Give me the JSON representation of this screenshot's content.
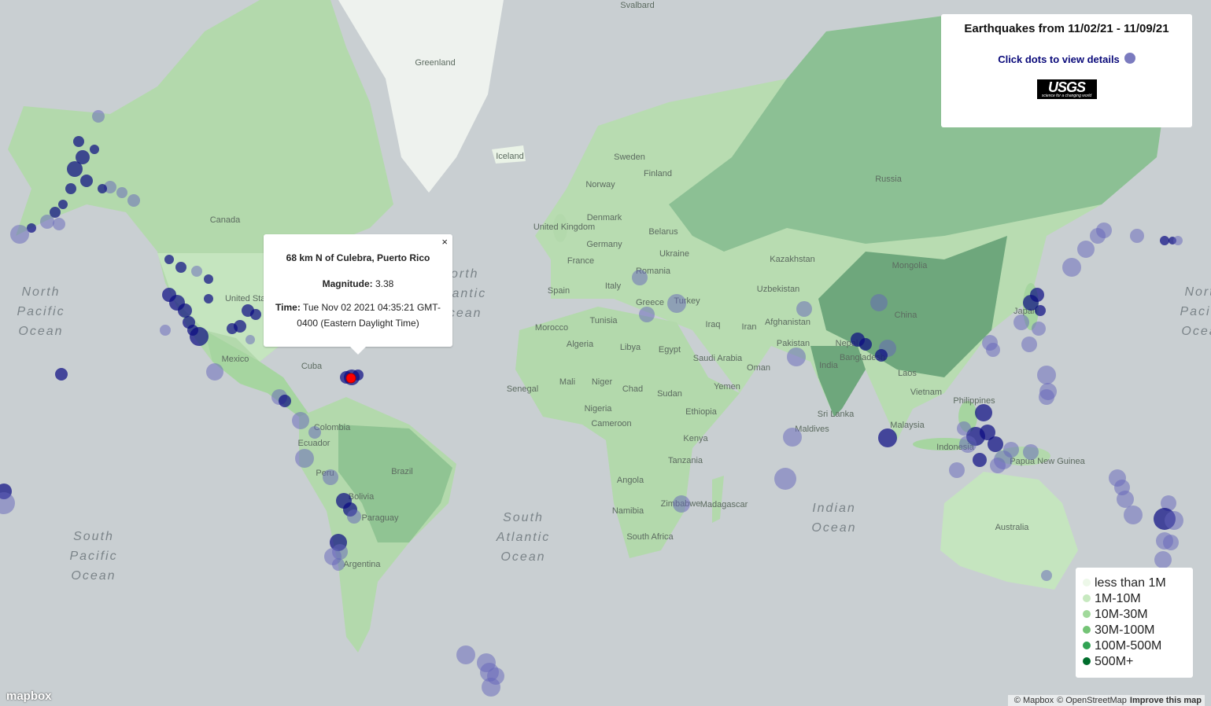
{
  "info": {
    "title": "Earthquakes from 11/02/21 - 11/09/21",
    "hint": "Click dots to view details",
    "logo": {
      "name": "USGS",
      "tagline": "science for a changing world"
    }
  },
  "popup": {
    "close": "×",
    "place": "68 km N of Culebra, Puerto Rico",
    "magnitude_label": "Magnitude:",
    "magnitude": 3.38,
    "time_label": "Time:",
    "time": "Tue Nov 02 2021 04:35:21 GMT-0400 (Eastern Daylight Time)"
  },
  "legend": [
    {
      "label": "less than 1M",
      "color": "#edf8e9"
    },
    {
      "label": "1M-10M",
      "color": "#c7e9c0"
    },
    {
      "label": "10M-30M",
      "color": "#a1d99b"
    },
    {
      "label": "30M-100M",
      "color": "#74c476"
    },
    {
      "label": "100M-500M",
      "color": "#31a354"
    },
    {
      "label": "500M+",
      "color": "#006d2c"
    }
  ],
  "map": {
    "countries": [
      "Svalbard",
      "Greenland",
      "Iceland",
      "Sweden",
      "Finland",
      "Norway",
      "Russia",
      "Denmark",
      "United Kingdom",
      "Belarus",
      "Germany",
      "Ukraine",
      "France",
      "Kazakhstan",
      "Mongolia",
      "Romania",
      "Italy",
      "Uzbekistan",
      "Spain",
      "Greece",
      "Turkey",
      "Tunisia",
      "Iraq",
      "Iran",
      "Afghanistan",
      "Morocco",
      "Pakistan",
      "China",
      "Nepal",
      "Algeria",
      "Libya",
      "Egypt",
      "Saudi Arabia",
      "Oman",
      "India",
      "Bangladesh",
      "Yemen",
      "Laos",
      "Vietnam",
      "Mali",
      "Niger",
      "Chad",
      "Sudan",
      "Senegal",
      "Nigeria",
      "Ethiopia",
      "Philippines",
      "Sri Lanka",
      "Malaysia",
      "Cameroon",
      "Kenya",
      "Maldives",
      "Indonesia",
      "Papua New Guinea",
      "Tanzania",
      "Angola",
      "Zimbabwe",
      "Madagascar",
      "Namibia",
      "South Africa",
      "Australia",
      "Canada",
      "United States",
      "Mexico",
      "Cuba",
      "Colombia",
      "Ecuador",
      "Brazil",
      "Peru",
      "Bolivia",
      "Paraguay",
      "Argentina",
      "Japan"
    ],
    "oceans": [
      [
        "North",
        "Pacific",
        "Ocean"
      ],
      [
        "North",
        "Atlantic",
        "Ocean"
      ],
      [
        "South",
        "Atlantic",
        "Ocean"
      ],
      [
        "South",
        "Pacific",
        "Ocean"
      ],
      [
        "Indian",
        "Ocean"
      ],
      [
        "North",
        "Pacific",
        "Ocean"
      ]
    ]
  },
  "attribution": {
    "logo": "mapbox",
    "links": [
      "© Mapbox",
      "© OpenStreetMap",
      "Improve this map"
    ]
  }
}
